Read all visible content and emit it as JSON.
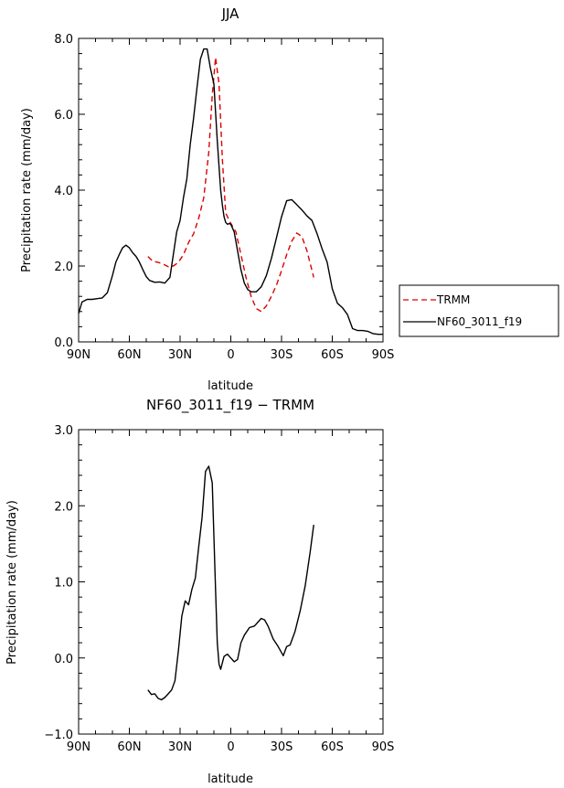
{
  "chart_data": [
    {
      "type": "line",
      "title": "JJA",
      "xlabel": "latitude",
      "ylabel": "Precipitation rate (mm/day)",
      "xlim": [
        90,
        -90
      ],
      "ylim": [
        0,
        8
      ],
      "x_ticks": [
        90,
        60,
        30,
        0,
        -30,
        -60,
        -90
      ],
      "x_tick_labels": [
        "90N",
        "60N",
        "30N",
        "0",
        "30S",
        "60S",
        "90S"
      ],
      "y_ticks": [
        0,
        2,
        4,
        6,
        8
      ],
      "y_tick_labels": [
        "0.0",
        "2.0",
        "4.0",
        "6.0",
        "8.0"
      ],
      "legend_position": "right",
      "series": [
        {
          "name": "TRMM",
          "style": "dashed",
          "color": "#dd0000",
          "x": [
            49,
            46,
            43,
            40,
            37,
            34,
            31,
            28,
            25,
            22,
            19,
            16,
            13,
            11,
            9,
            7,
            5,
            3,
            1,
            -1,
            -3,
            -6,
            -9,
            -12,
            -15,
            -18,
            -21,
            -24,
            -27,
            -30,
            -33,
            -36,
            -39,
            -42,
            -45,
            -49
          ],
          "y": [
            2.25,
            2.12,
            2.1,
            2.05,
            1.98,
            2.0,
            2.1,
            2.3,
            2.62,
            2.85,
            3.25,
            3.8,
            5.0,
            6.5,
            7.5,
            6.8,
            4.8,
            3.4,
            3.2,
            3.05,
            2.9,
            2.3,
            1.7,
            1.2,
            0.88,
            0.8,
            0.95,
            1.2,
            1.5,
            1.88,
            2.3,
            2.65,
            2.87,
            2.78,
            2.4,
            1.7
          ]
        },
        {
          "name": "NF60_3011_f19",
          "style": "solid",
          "color": "#000000",
          "x": [
            90,
            88,
            85,
            82,
            79,
            76,
            73,
            70,
            68,
            66,
            64,
            62,
            60,
            58,
            56,
            54,
            52,
            50,
            48,
            45,
            42,
            39,
            36,
            34,
            32,
            30,
            28,
            26,
            24,
            22,
            20,
            18,
            16,
            14,
            12,
            10,
            8,
            6,
            5,
            4,
            3,
            2,
            1,
            0,
            -2,
            -4,
            -6,
            -8,
            -10,
            -12,
            -15,
            -18,
            -21,
            -24,
            -27,
            -30,
            -33,
            -36,
            -39,
            -42,
            -45,
            -48,
            -51,
            -54,
            -57,
            -60,
            -63,
            -66,
            -69,
            -72,
            -75,
            -78,
            -81,
            -84,
            -87,
            -90
          ],
          "y": [
            0.75,
            1.05,
            1.12,
            1.12,
            1.14,
            1.16,
            1.3,
            1.75,
            2.1,
            2.3,
            2.48,
            2.55,
            2.48,
            2.35,
            2.25,
            2.1,
            1.9,
            1.72,
            1.62,
            1.57,
            1.58,
            1.55,
            1.7,
            2.3,
            2.9,
            3.2,
            3.8,
            4.3,
            5.2,
            5.9,
            6.7,
            7.45,
            7.72,
            7.72,
            7.2,
            6.8,
            5.3,
            4.0,
            3.6,
            3.3,
            3.15,
            3.1,
            3.12,
            3.1,
            2.9,
            2.4,
            1.9,
            1.55,
            1.38,
            1.32,
            1.32,
            1.45,
            1.75,
            2.2,
            2.75,
            3.3,
            3.72,
            3.75,
            3.62,
            3.48,
            3.32,
            3.2,
            2.85,
            2.45,
            2.1,
            1.4,
            1.02,
            0.9,
            0.72,
            0.35,
            0.3,
            0.3,
            0.28,
            0.22,
            0.2,
            0.2
          ]
        }
      ]
    },
    {
      "type": "line",
      "title": "NF60_3011_f19 − TRMM",
      "xlabel": "latitude",
      "ylabel": "Precipitation rate (mm/day)",
      "xlim": [
        90,
        -90
      ],
      "ylim": [
        -1,
        3
      ],
      "x_ticks": [
        90,
        60,
        30,
        0,
        -30,
        -60,
        -90
      ],
      "x_tick_labels": [
        "90N",
        "60N",
        "30N",
        "0",
        "30S",
        "60S",
        "90S"
      ],
      "y_ticks": [
        -1,
        0,
        1,
        2,
        3
      ],
      "y_tick_labels": [
        "−1.0",
        "0.0",
        "1.0",
        "2.0",
        "3.0"
      ],
      "series": [
        {
          "name": "NF60_3011_f19 − TRMM",
          "style": "solid",
          "color": "#000000",
          "x": [
            49,
            47,
            45,
            43,
            41,
            39,
            37,
            35,
            33,
            31,
            29,
            27,
            25,
            23,
            21,
            19,
            17,
            15,
            13,
            11,
            10,
            9,
            8,
            7,
            6,
            4,
            2,
            0,
            -2,
            -4,
            -6,
            -8,
            -11,
            -14,
            -16,
            -18,
            -20,
            -22,
            -25,
            -28,
            -31,
            -33,
            -35,
            -38,
            -41,
            -44,
            -47,
            -49
          ],
          "y": [
            -0.42,
            -0.48,
            -0.47,
            -0.53,
            -0.55,
            -0.52,
            -0.47,
            -0.42,
            -0.3,
            0.1,
            0.55,
            0.75,
            0.7,
            0.9,
            1.05,
            1.45,
            1.85,
            2.45,
            2.52,
            2.3,
            1.6,
            0.9,
            0.2,
            -0.08,
            -0.15,
            0.02,
            0.05,
            0.0,
            -0.05,
            -0.02,
            0.2,
            0.3,
            0.4,
            0.42,
            0.47,
            0.52,
            0.5,
            0.42,
            0.25,
            0.15,
            0.03,
            0.15,
            0.17,
            0.35,
            0.62,
            0.95,
            1.4,
            1.75
          ]
        }
      ]
    }
  ]
}
